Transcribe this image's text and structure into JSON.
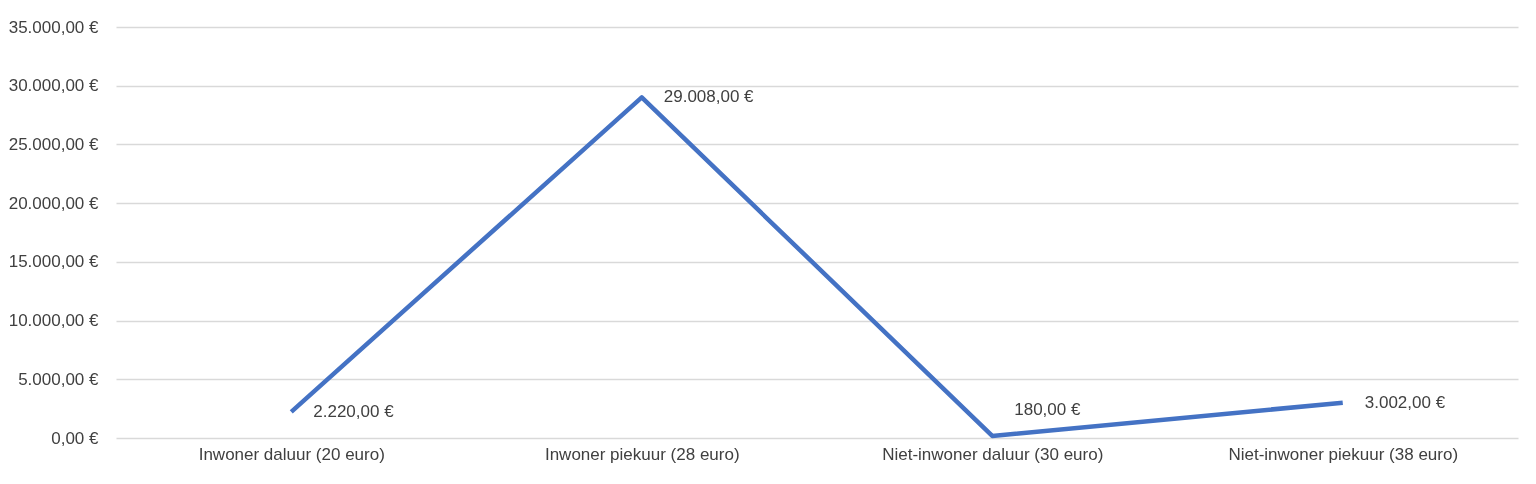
{
  "chart_data": {
    "type": "line",
    "categories": [
      "Inwoner daluur (20 euro)",
      "Inwoner piekuur (28 euro)",
      "Niet-inwoner daluur (30 euro)",
      "Niet-inwoner piekuur (38 euro)"
    ],
    "series": [
      {
        "color": "#4472c4",
        "values": [
          2220,
          29008,
          180,
          3002
        ],
        "value_labels": [
          "2.220,00 €",
          "29.008,00 €",
          "180,00 €",
          "3.002,00 €"
        ]
      }
    ],
    "ylim": [
      0,
      35000
    ],
    "yticks": [
      {
        "value": 0,
        "label": "0,00 €"
      },
      {
        "value": 5000,
        "label": "5.000,00 €"
      },
      {
        "value": 10000,
        "label": "10.000,00 €"
      },
      {
        "value": 15000,
        "label": "15.000,00 €"
      },
      {
        "value": 20000,
        "label": "20.000,00 €"
      },
      {
        "value": 25000,
        "label": "25.000,00 €"
      },
      {
        "value": 30000,
        "label": "30.000,00 €"
      },
      {
        "value": 35000,
        "label": "35.000,00 €"
      }
    ],
    "grid": "y",
    "marker": "none",
    "line_style": "solid"
  }
}
